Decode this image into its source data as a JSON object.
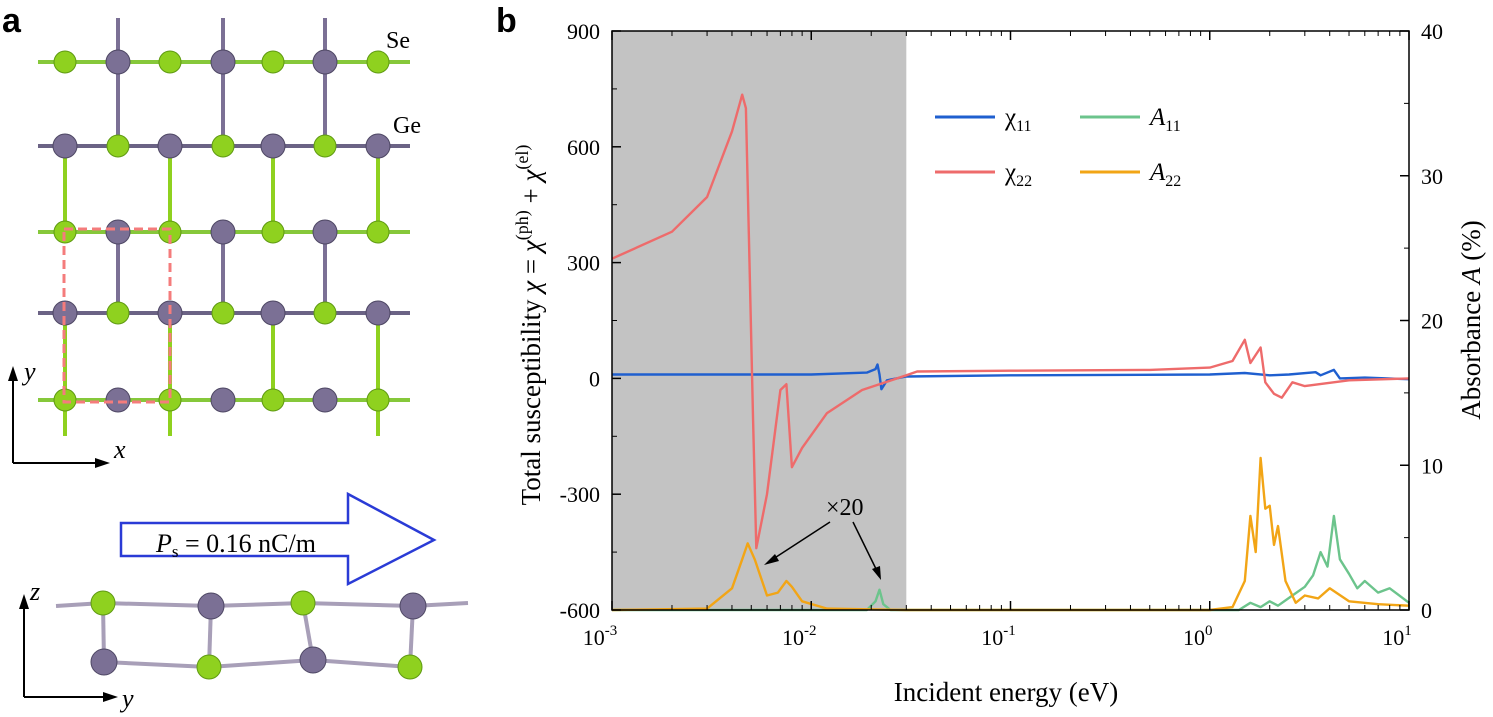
{
  "figure": {
    "panel_a_label": "a",
    "panel_b_label": "b",
    "atoms": {
      "se": "Se",
      "ge": "Ge"
    },
    "colors": {
      "se": "#8fd11f",
      "ge": "#7b7095",
      "cell": "#f47c7c",
      "arrow": "#2a3bd6",
      "shade": "#c3c3c3"
    },
    "top_view": {
      "axis_x": "x",
      "axis_y": "y"
    },
    "side_view": {
      "axis_z": "z",
      "axis_y": "y"
    },
    "polarization": {
      "symbol": "P",
      "subscript": "s",
      "value": " = 0.16 nC/m"
    },
    "annotation": "×20"
  },
  "chart_data": {
    "type": "line",
    "title": "",
    "xlabel": "Incident energy (eV)",
    "xscale": "log",
    "xlim": [
      0.001,
      10
    ],
    "x_ticks": [
      {
        "base": "10",
        "exp": "-3",
        "value": 0.001
      },
      {
        "base": "10",
        "exp": "-2",
        "value": 0.01
      },
      {
        "base": "10",
        "exp": "-1",
        "value": 0.1
      },
      {
        "base": "10",
        "exp": "0",
        "value": 1
      },
      {
        "base": "10",
        "exp": "1",
        "value": 10
      }
    ],
    "ylabel_left": {
      "main": "Total susceptibility ",
      "sym1": "χ",
      "eq1": " = ",
      "sym2": "χ",
      "sup2": "(ph)",
      "plus": " + ",
      "sym3": "χ",
      "sup3": "(el)"
    },
    "ylim_left": [
      -600,
      900
    ],
    "y_ticks_left": [
      "-600",
      "-300",
      "0",
      "300",
      "600",
      "900"
    ],
    "ylabel_right": {
      "main": "Absorbance ",
      "sym": "A",
      "unit": " (%)"
    },
    "ylim_right": [
      0,
      40
    ],
    "y_ticks_right": [
      "0",
      "10",
      "20",
      "30",
      "40"
    ],
    "shaded_region_ev": [
      0.001,
      0.03
    ],
    "series": [
      {
        "name": "χ11",
        "label": "χ",
        "sub": "11",
        "axis": "left",
        "color": "#1f5fcf",
        "points": [
          [
            0.001,
            10
          ],
          [
            0.01,
            10
          ],
          [
            0.019,
            15
          ],
          [
            0.021,
            24
          ],
          [
            0.0215,
            36
          ],
          [
            0.022,
            10
          ],
          [
            0.0225,
            -28
          ],
          [
            0.024,
            -5
          ],
          [
            0.03,
            5
          ],
          [
            0.1,
            8
          ],
          [
            1.0,
            10
          ],
          [
            1.5,
            14
          ],
          [
            2.0,
            8
          ],
          [
            2.5,
            10
          ],
          [
            3.4,
            16
          ],
          [
            3.6,
            8
          ],
          [
            4.2,
            22
          ],
          [
            4.5,
            0
          ],
          [
            6.0,
            2
          ],
          [
            10,
            -2
          ]
        ]
      },
      {
        "name": "χ22",
        "label": "χ",
        "sub": "22",
        "axis": "left",
        "color": "#ee6b6b",
        "points": [
          [
            0.001,
            310
          ],
          [
            0.002,
            380
          ],
          [
            0.003,
            470
          ],
          [
            0.004,
            640
          ],
          [
            0.0045,
            735
          ],
          [
            0.0047,
            700
          ],
          [
            0.0049,
            300
          ],
          [
            0.0051,
            -100
          ],
          [
            0.0053,
            -440
          ],
          [
            0.006,
            -300
          ],
          [
            0.007,
            -30
          ],
          [
            0.0075,
            -15
          ],
          [
            0.008,
            -230
          ],
          [
            0.009,
            -180
          ],
          [
            0.012,
            -90
          ],
          [
            0.018,
            -30
          ],
          [
            0.03,
            8
          ],
          [
            0.034,
            18
          ],
          [
            0.1,
            20
          ],
          [
            0.5,
            22
          ],
          [
            1.0,
            28
          ],
          [
            1.3,
            45
          ],
          [
            1.5,
            100
          ],
          [
            1.6,
            40
          ],
          [
            1.8,
            80
          ],
          [
            1.9,
            -10
          ],
          [
            2.1,
            -40
          ],
          [
            2.3,
            -50
          ],
          [
            2.6,
            -10
          ],
          [
            3.0,
            -20
          ],
          [
            5.0,
            -5
          ],
          [
            10,
            0
          ]
        ]
      },
      {
        "name": "A11",
        "label": "A",
        "sub": "11",
        "axis": "right",
        "color": "#6cc48c",
        "points": [
          [
            0.001,
            0
          ],
          [
            0.019,
            0
          ],
          [
            0.021,
            0.6
          ],
          [
            0.022,
            1.4
          ],
          [
            0.023,
            0.4
          ],
          [
            0.025,
            0
          ],
          [
            1.4,
            0
          ],
          [
            1.6,
            0.5
          ],
          [
            1.8,
            0.2
          ],
          [
            2.0,
            0.6
          ],
          [
            2.2,
            0.3
          ],
          [
            2.6,
            1.0
          ],
          [
            3.0,
            1.6
          ],
          [
            3.3,
            2.4
          ],
          [
            3.6,
            4.0
          ],
          [
            3.9,
            3.0
          ],
          [
            4.2,
            6.5
          ],
          [
            4.5,
            3.5
          ],
          [
            5.0,
            2.5
          ],
          [
            5.5,
            1.5
          ],
          [
            6.0,
            2.0
          ],
          [
            7.0,
            1.2
          ],
          [
            8.0,
            1.5
          ],
          [
            10,
            0.5
          ]
        ]
      },
      {
        "name": "A22",
        "label": "A",
        "sub": "22",
        "axis": "right",
        "color": "#f2a516",
        "points": [
          [
            0.001,
            0
          ],
          [
            0.003,
            0.1
          ],
          [
            0.004,
            1.5
          ],
          [
            0.0045,
            3.5
          ],
          [
            0.0048,
            4.6
          ],
          [
            0.0052,
            3.5
          ],
          [
            0.006,
            1.0
          ],
          [
            0.0068,
            1.2
          ],
          [
            0.0075,
            2.0
          ],
          [
            0.008,
            1.6
          ],
          [
            0.009,
            0.6
          ],
          [
            0.012,
            0.1
          ],
          [
            0.03,
            0
          ],
          [
            1.0,
            0
          ],
          [
            1.3,
            0.2
          ],
          [
            1.5,
            2.0
          ],
          [
            1.6,
            6.5
          ],
          [
            1.7,
            4.0
          ],
          [
            1.8,
            10.5
          ],
          [
            1.9,
            7.0
          ],
          [
            2.0,
            7.2
          ],
          [
            2.1,
            4.5
          ],
          [
            2.2,
            5.8
          ],
          [
            2.4,
            2.0
          ],
          [
            2.7,
            0.5
          ],
          [
            3.0,
            1.0
          ],
          [
            3.5,
            0.8
          ],
          [
            4.0,
            1.5
          ],
          [
            5.0,
            0.6
          ],
          [
            7.0,
            0.4
          ],
          [
            10,
            0.3
          ]
        ]
      }
    ]
  }
}
